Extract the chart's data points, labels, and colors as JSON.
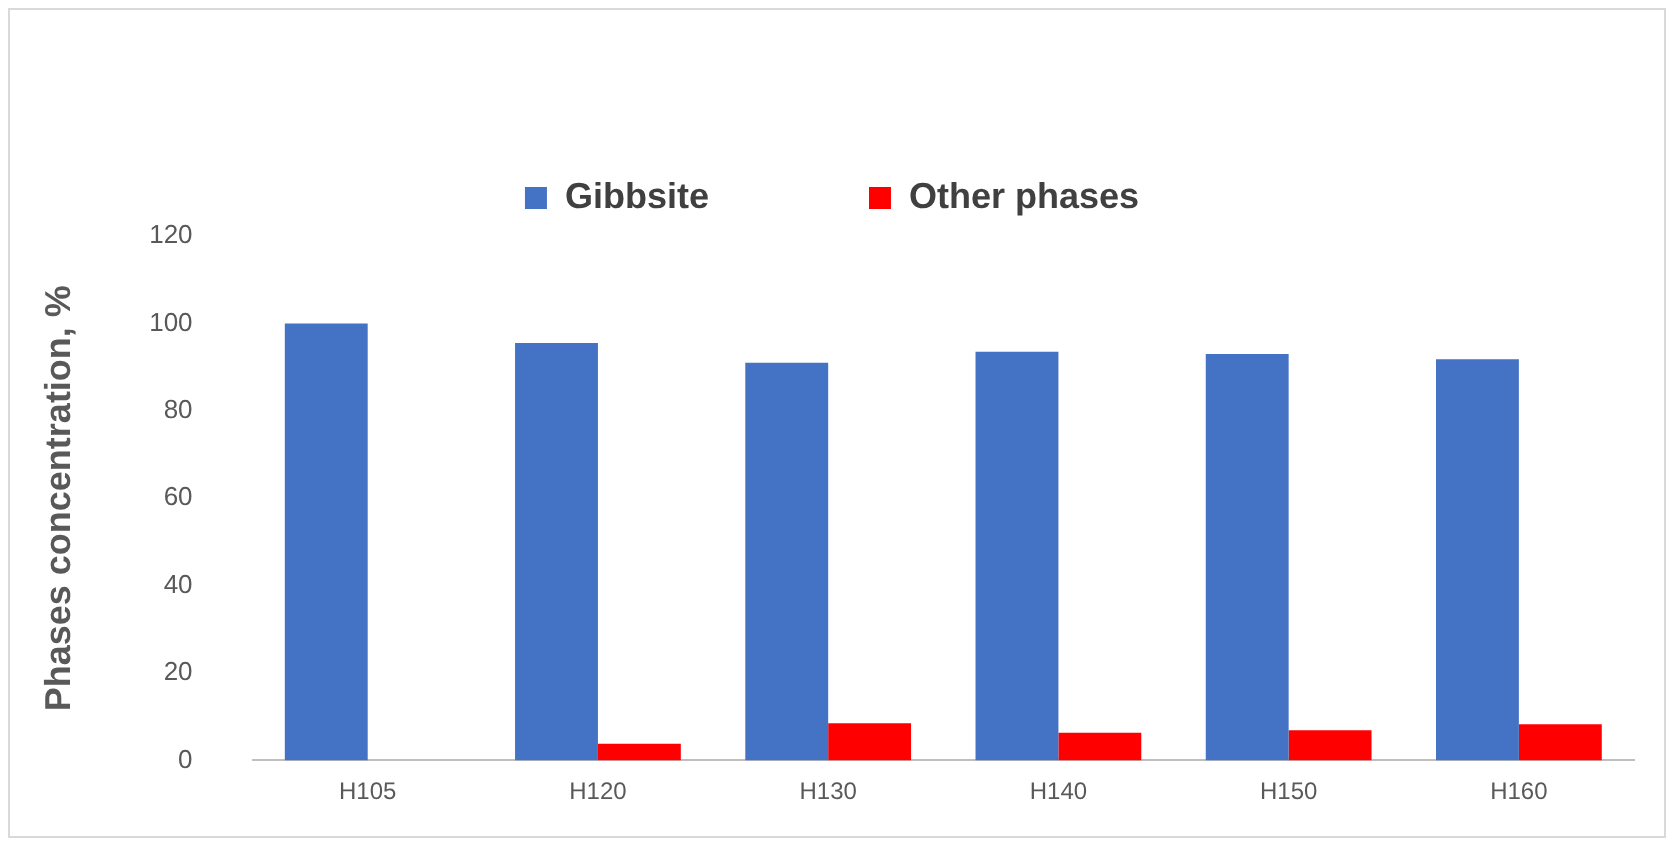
{
  "chart_data": {
    "type": "bar",
    "ylabel": "Phases concentration, %",
    "categories": [
      "H105",
      "H120",
      "H130",
      "H140",
      "H150",
      "H160"
    ],
    "series": [
      {
        "name": "Gibbsite",
        "color": "#4472c4",
        "values": [
          100,
          95.5,
          91,
          93.5,
          93,
          91.8
        ]
      },
      {
        "name": "Other phases",
        "color": "#ff0000",
        "values": [
          0,
          3.8,
          8.5,
          6.3,
          6.9,
          8.3
        ]
      }
    ],
    "ylim": [
      0,
      120
    ],
    "yticks": [
      0,
      20,
      40,
      60,
      80,
      100,
      120
    ],
    "grid": false,
    "legend": "top"
  }
}
